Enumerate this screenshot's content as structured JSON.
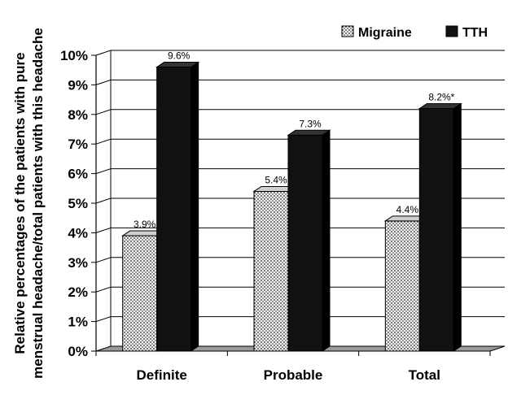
{
  "chart_data": {
    "type": "bar",
    "categories": [
      "Definite",
      "Probable",
      "Total"
    ],
    "series": [
      {
        "name": "Migraine",
        "values": [
          3.9,
          5.4,
          4.4
        ],
        "labels": [
          "3.9%",
          "5.4%",
          "4.4%"
        ],
        "pattern": "dotted"
      },
      {
        "name": "TTH",
        "values": [
          9.6,
          7.3,
          8.2
        ],
        "labels": [
          "9.6%",
          "7.3%",
          "8.2%*"
        ],
        "color": "#111111"
      }
    ],
    "ylabel_lines": [
      "Relative percentages of the patients with pure",
      "menstrual headache/total patients with this headache"
    ],
    "yticks": [
      "0%",
      "1%",
      "2%",
      "3%",
      "4%",
      "5%",
      "6%",
      "7%",
      "8%",
      "9%",
      "10%"
    ],
    "ylim": [
      0,
      10
    ],
    "grid": true,
    "style": "3d-bar",
    "legend_position": "top-right"
  }
}
